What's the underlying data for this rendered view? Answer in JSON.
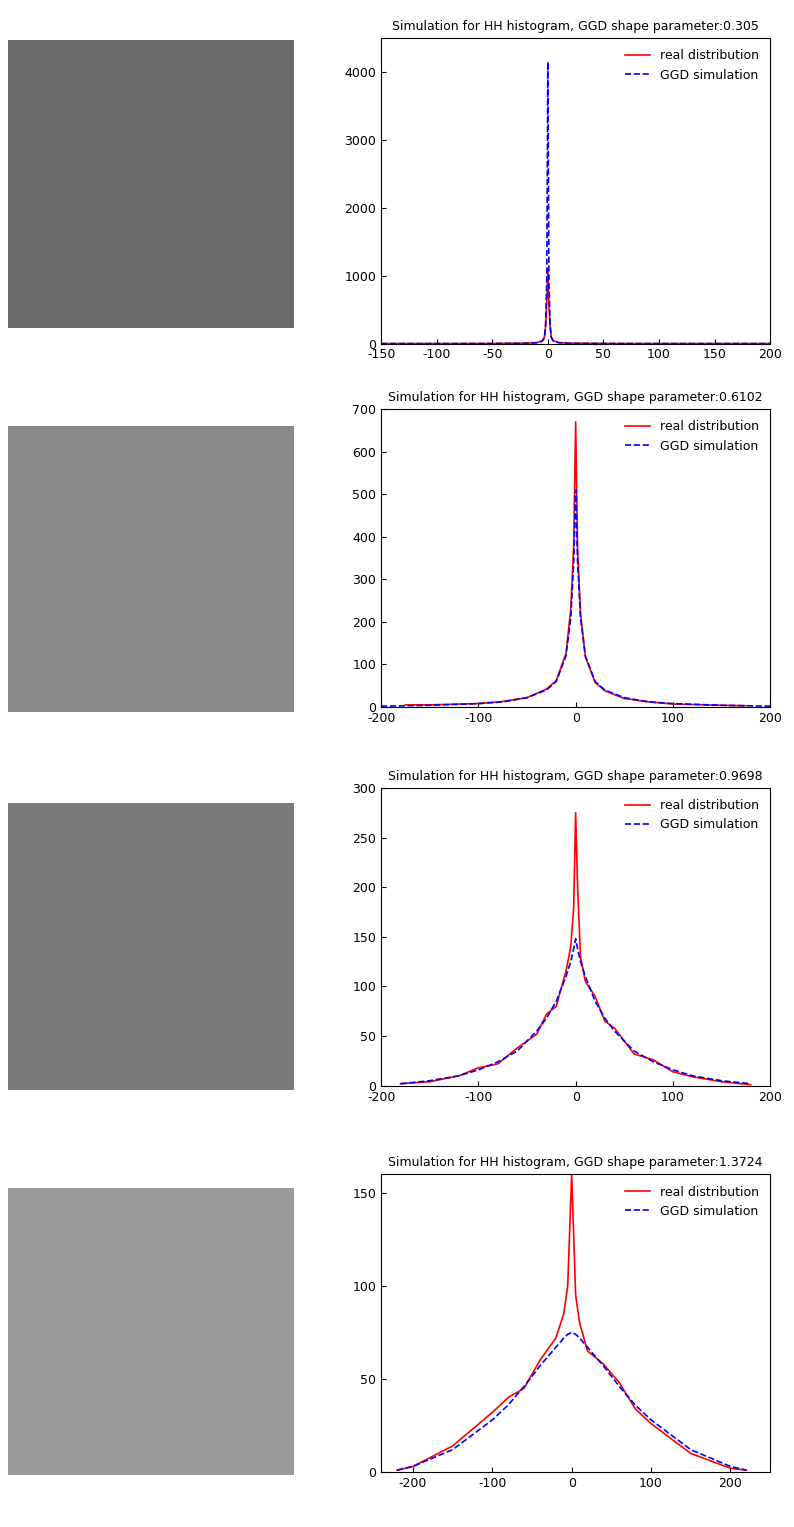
{
  "chart_data": [
    {
      "type": "line",
      "title": "Simulation for HH histogram, GGD shape parameter:0.305",
      "x": [
        -150,
        -100,
        -50,
        -20,
        -10,
        -5,
        -3,
        -2,
        -1,
        0,
        1,
        2,
        3,
        5,
        10,
        20,
        50,
        100,
        150,
        200
      ],
      "series": [
        {
          "name": "real distribution",
          "color": "#ff0000",
          "line_style": "solid",
          "values": [
            0,
            0,
            2,
            5,
            15,
            40,
            100,
            250,
            600,
            1100,
            550,
            250,
            100,
            40,
            15,
            5,
            2,
            0,
            0,
            0
          ]
        },
        {
          "name": "GGD simulation",
          "color": "#0000ff",
          "line_style": "dashed",
          "values": [
            0,
            0,
            1,
            4,
            12,
            35,
            90,
            300,
            900,
            4150,
            900,
            300,
            90,
            35,
            12,
            4,
            1,
            0,
            0,
            0
          ]
        }
      ],
      "xlim": [
        -150,
        200
      ],
      "xticks": [
        -150,
        -100,
        -50,
        0,
        50,
        100,
        150,
        200
      ],
      "ylim": [
        0,
        4500
      ],
      "yticks": [
        0,
        1000,
        2000,
        3000,
        4000
      ],
      "legend": "upper right"
    },
    {
      "type": "line",
      "title": "Simulation for HH histogram, GGD shape parameter:0.6102",
      "x": [
        -200,
        -175,
        -150,
        -100,
        -75,
        -50,
        -30,
        -20,
        -10,
        -5,
        -2,
        0,
        2,
        5,
        10,
        20,
        30,
        50,
        75,
        100,
        150,
        175,
        200
      ],
      "series": [
        {
          "name": "real distribution",
          "color": "#ff0000",
          "line_style": "solid",
          "values": [
            null,
            5,
            5,
            8,
            13,
            22,
            42,
            62,
            125,
            230,
            380,
            670,
            370,
            220,
            118,
            58,
            38,
            20,
            12,
            7,
            4,
            3,
            null
          ]
        },
        {
          "name": "GGD simulation",
          "color": "#0000ff",
          "line_style": "dashed",
          "values": [
            2,
            3,
            4,
            8,
            12,
            22,
            40,
            60,
            120,
            210,
            340,
            510,
            340,
            210,
            120,
            60,
            40,
            22,
            12,
            8,
            4,
            3,
            2
          ]
        }
      ],
      "xlim": [
        -200,
        200
      ],
      "xticks": [
        -200,
        -100,
        0,
        100,
        200
      ],
      "ylim": [
        0,
        700
      ],
      "yticks": [
        0,
        100,
        200,
        300,
        400,
        500,
        600,
        700
      ],
      "legend": "upper right"
    },
    {
      "type": "line",
      "title": "Simulation for HH histogram, GGD shape parameter:0.9698",
      "x": [
        -180,
        -150,
        -120,
        -100,
        -80,
        -60,
        -40,
        -30,
        -20,
        -10,
        -5,
        -2,
        0,
        2,
        5,
        10,
        20,
        30,
        40,
        60,
        80,
        100,
        120,
        150,
        180
      ],
      "series": [
        {
          "name": "real distribution",
          "color": "#ff0000",
          "line_style": "solid",
          "values": [
            2,
            4,
            10,
            18,
            22,
            38,
            52,
            72,
            80,
            115,
            140,
            180,
            275,
            200,
            130,
            105,
            90,
            65,
            58,
            32,
            26,
            14,
            9,
            4,
            1
          ]
        },
        {
          "name": "GGD simulation",
          "color": "#0000ff",
          "line_style": "dashed",
          "values": [
            2,
            5,
            10,
            16,
            24,
            35,
            55,
            68,
            85,
            110,
            125,
            138,
            148,
            138,
            125,
            110,
            85,
            68,
            55,
            35,
            24,
            16,
            10,
            5,
            2
          ]
        }
      ],
      "xlim": [
        -200,
        200
      ],
      "xticks": [
        -200,
        -100,
        0,
        100,
        200
      ],
      "ylim": [
        0,
        300
      ],
      "yticks": [
        0,
        50,
        100,
        150,
        200,
        250,
        300
      ],
      "legend": "upper right"
    },
    {
      "type": "line",
      "title": "Simulation for HH histogram, GGD shape parameter:1.3724",
      "x": [
        -220,
        -200,
        -150,
        -100,
        -80,
        -60,
        -40,
        -20,
        -10,
        -5,
        0,
        5,
        10,
        20,
        40,
        60,
        80,
        100,
        150,
        200,
        220
      ],
      "series": [
        {
          "name": "real distribution",
          "color": "#ff0000",
          "line_style": "solid",
          "values": [
            1,
            3,
            14,
            32,
            40,
            45,
            60,
            72,
            85,
            100,
            160,
            95,
            80,
            65,
            58,
            48,
            34,
            26,
            10,
            2,
            1
          ]
        },
        {
          "name": "GGD simulation",
          "color": "#0000ff",
          "line_style": "dashed",
          "values": [
            1,
            3,
            12,
            28,
            36,
            46,
            57,
            67,
            72,
            74,
            75,
            74,
            72,
            67,
            57,
            46,
            36,
            28,
            12,
            3,
            1
          ]
        }
      ],
      "xlim": [
        -240,
        250
      ],
      "xticks": [
        -200,
        -100,
        0,
        100,
        200
      ],
      "ylim": [
        0,
        160
      ],
      "yticks": [
        0,
        50,
        100,
        150
      ],
      "legend": "upper right"
    }
  ]
}
